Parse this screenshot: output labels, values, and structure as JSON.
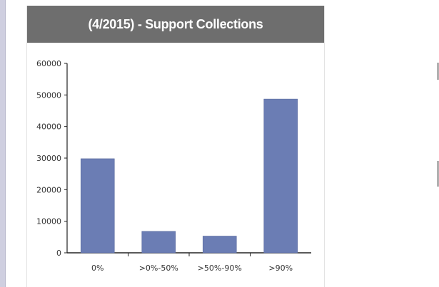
{
  "panel": {
    "title": "(4/2015) - Support Collections"
  },
  "colors": {
    "bar": "#6b7db4",
    "header_bg": "#6e6e6e",
    "axis": "#222222"
  },
  "chart_data": {
    "type": "bar",
    "title": "(4/2015) - Support Collections",
    "xlabel": "",
    "ylabel": "",
    "categories": [
      "0%",
      ">0%-50%",
      ">50%-90%",
      ">90%"
    ],
    "values": [
      29800,
      6800,
      5300,
      48700
    ],
    "ylim": [
      0,
      60000
    ],
    "yticks": [
      0,
      10000,
      20000,
      30000,
      40000,
      50000,
      60000
    ],
    "ytick_labels": [
      "0",
      "10000",
      "20000",
      "30000",
      "40000",
      "50000",
      "60000"
    ],
    "grid": false,
    "legend": "none"
  }
}
